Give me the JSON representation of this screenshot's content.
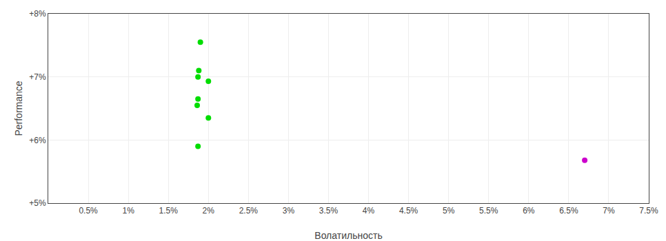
{
  "chart_data": {
    "type": "scatter",
    "xlabel": "Волатильность",
    "ylabel": "Performance",
    "xlim": [
      0.0,
      0.075
    ],
    "ylim": [
      0.05,
      0.08
    ],
    "xticks": [
      {
        "value": 0.005,
        "label": "0.5%"
      },
      {
        "value": 0.01,
        "label": "1%"
      },
      {
        "value": 0.015,
        "label": "1.5%"
      },
      {
        "value": 0.02,
        "label": "2%"
      },
      {
        "value": 0.025,
        "label": "2.5%"
      },
      {
        "value": 0.03,
        "label": "3%"
      },
      {
        "value": 0.035,
        "label": "3.5%"
      },
      {
        "value": 0.04,
        "label": "4%"
      },
      {
        "value": 0.045,
        "label": "4.5%"
      },
      {
        "value": 0.05,
        "label": "5%"
      },
      {
        "value": 0.055,
        "label": "5.5%"
      },
      {
        "value": 0.06,
        "label": "6%"
      },
      {
        "value": 0.065,
        "label": "6.5%"
      },
      {
        "value": 0.07,
        "label": "7%"
      },
      {
        "value": 0.075,
        "label": "7.5%"
      }
    ],
    "yticks": [
      {
        "value": 0.05,
        "label": "+5%"
      },
      {
        "value": 0.06,
        "label": "+6%"
      },
      {
        "value": 0.07,
        "label": "+7%"
      },
      {
        "value": 0.08,
        "label": "+8%"
      }
    ],
    "grid": true,
    "series": [
      {
        "color": "#00dd00",
        "x": [
          0.019,
          0.0188,
          0.0187,
          0.02,
          0.0187,
          0.0186,
          0.02,
          0.0187
        ],
        "values": [
          0.0755,
          0.071,
          0.07,
          0.0693,
          0.0665,
          0.0655,
          0.0635,
          0.059
        ]
      },
      {
        "color": "#cc00cc",
        "x": [
          0.067
        ],
        "values": [
          0.0568
        ]
      }
    ]
  }
}
